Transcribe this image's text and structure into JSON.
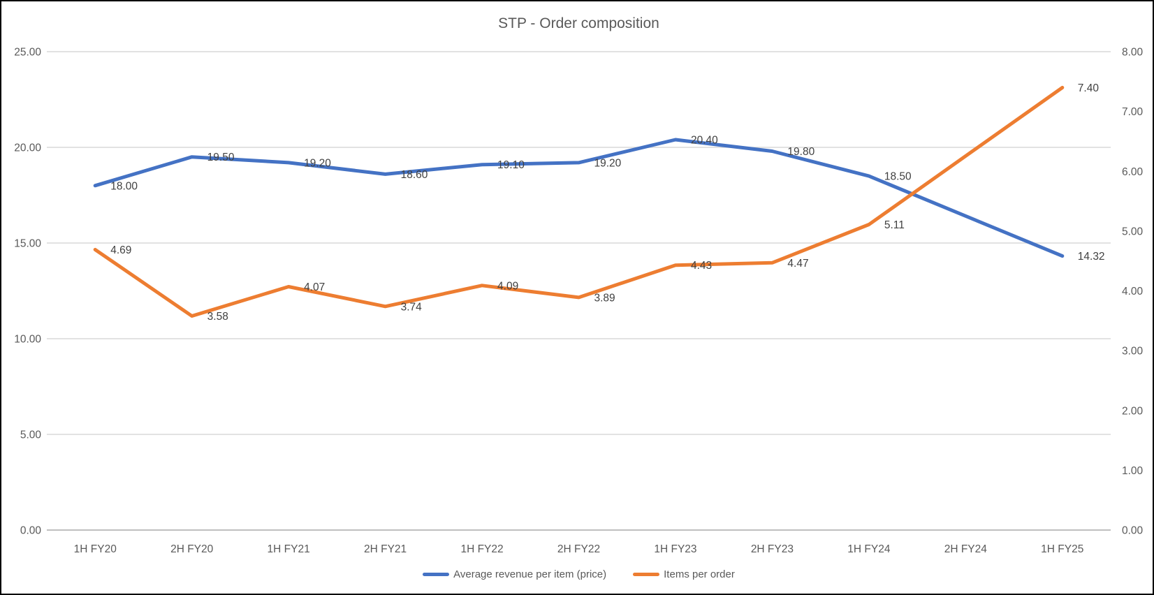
{
  "title": "STP - Order composition",
  "chart_data": {
    "type": "line",
    "title": "STP - Order composition",
    "categories": [
      "1H FY20",
      "2H FY20",
      "1H FY21",
      "2H FY21",
      "1H FY22",
      "2H FY22",
      "1H FY23",
      "2H FY23",
      "1H FY24",
      "2H FY24",
      "1H FY25"
    ],
    "series": [
      {
        "name": "Average revenue per item (price)",
        "axis": "left",
        "color": "#4472C4",
        "values": [
          18.0,
          19.5,
          19.2,
          18.6,
          19.1,
          19.2,
          20.4,
          19.8,
          18.5,
          null,
          14.32
        ],
        "labels": [
          "18.00",
          "19.50",
          "19.20",
          "18.60",
          "19.10",
          "19.20",
          "20.40",
          "19.80",
          "18.50",
          "",
          "14.32"
        ]
      },
      {
        "name": "Items per order",
        "axis": "right",
        "color": "#ED7D31",
        "values": [
          4.69,
          3.58,
          4.07,
          3.74,
          4.09,
          3.89,
          4.43,
          4.47,
          5.11,
          null,
          7.4
        ],
        "labels": [
          "4.69",
          "3.58",
          "4.07",
          "3.74",
          "4.09",
          "3.89",
          "4.43",
          "4.47",
          "5.11",
          "",
          "7.40"
        ]
      }
    ],
    "left_axis": {
      "min": 0,
      "max": 25,
      "ticks": [
        "0.00",
        "5.00",
        "10.00",
        "15.00",
        "20.00",
        "25.00"
      ]
    },
    "right_axis": {
      "min": 0,
      "max": 8,
      "ticks": [
        "0.00",
        "1.00",
        "2.00",
        "3.00",
        "4.00",
        "5.00",
        "6.00",
        "7.00",
        "8.00"
      ]
    },
    "grid": true,
    "legend_position": "bottom",
    "colors": {
      "gridline": "#D9D9D9",
      "axis_line": "#BFBFBF",
      "tick_text": "#595959",
      "data_label_text": "#404040",
      "title_text": "#595959"
    }
  }
}
